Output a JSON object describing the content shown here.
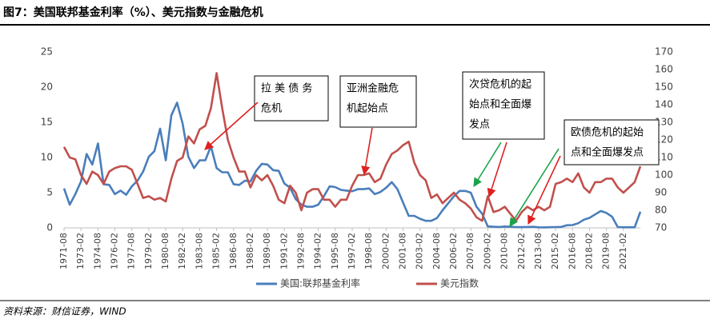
{
  "chart_data": {
    "type": "line",
    "title": "图7：美国联邦基金利率（%）、美元指数与金融危机",
    "source": "资料来源：财信证券，WIND",
    "categories": [
      "1971-08",
      null,
      null,
      "1973-02",
      null,
      null,
      "1974-08",
      null,
      null,
      "1976-02",
      null,
      null,
      "1977-08",
      null,
      null,
      "1979-02",
      null,
      null,
      "1980-08",
      null,
      null,
      "1982-02",
      null,
      null,
      "1983-08",
      null,
      null,
      "1985-02",
      null,
      null,
      "1986-08",
      null,
      null,
      "1988-02",
      null,
      null,
      "1989-08",
      null,
      null,
      "1991-02",
      null,
      null,
      "1992-08",
      null,
      null,
      "1994-02",
      null,
      null,
      "1995-08",
      null,
      null,
      "1997-02",
      null,
      null,
      "1998-08",
      null,
      null,
      "2000-02",
      null,
      null,
      "2001-08",
      null,
      null,
      "2003-02",
      null,
      null,
      "2004-08",
      null,
      null,
      "2006-02",
      null,
      null,
      "2007-08",
      null,
      null,
      "2009-02",
      null,
      null,
      "2010-08",
      null,
      null,
      "2012-02",
      null,
      null,
      "2013-08",
      null,
      null,
      "2015-02",
      null,
      null,
      "2016-08",
      null,
      null,
      "2018-02",
      null,
      null,
      "2019-08",
      null,
      null,
      "2021-02",
      null,
      null,
      null
    ],
    "series": [
      {
        "name": "美国:联邦基金利率",
        "color": "#4a7ebb",
        "values": [
          5.6,
          3.3,
          4.8,
          6.6,
          10.5,
          9.0,
          12.0,
          6.2,
          6.1,
          4.8,
          5.3,
          4.7,
          5.9,
          6.7,
          8.0,
          10.1,
          10.9,
          14.1,
          9.6,
          16.0,
          17.8,
          14.8,
          10.1,
          8.5,
          9.6,
          9.6,
          11.6,
          8.5,
          7.9,
          7.9,
          6.2,
          6.1,
          6.7,
          6.6,
          8.1,
          9.1,
          9.0,
          8.2,
          8.1,
          6.3,
          5.7,
          4.1,
          3.3,
          3.0,
          3.0,
          3.3,
          4.5,
          5.9,
          5.8,
          5.4,
          5.3,
          5.2,
          5.5,
          5.5,
          5.6,
          4.8,
          5.1,
          5.7,
          6.5,
          5.5,
          3.6,
          1.7,
          1.7,
          1.3,
          1.0,
          1.0,
          1.4,
          2.5,
          3.5,
          4.5,
          5.25,
          5.25,
          5.0,
          3.0,
          2.0,
          0.2,
          0.16,
          0.13,
          0.19,
          0.16,
          0.1,
          0.1,
          0.13,
          0.15,
          0.08,
          0.07,
          0.09,
          0.11,
          0.14,
          0.38,
          0.4,
          0.66,
          1.16,
          1.42,
          1.91,
          2.4,
          2.13,
          1.58,
          0.1,
          0.08,
          0.09,
          0.08,
          2.3
        ]
      },
      {
        "name": "美元指数",
        "color": "#c0504d",
        "axis": "y2",
        "values": [
          116,
          110,
          109,
          100,
          95,
          102,
          100,
          95,
          102,
          104,
          105,
          105,
          103,
          95,
          87,
          88,
          86,
          87,
          85,
          98,
          108,
          110,
          122,
          118,
          126,
          128,
          138,
          158,
          138,
          120,
          110,
          102,
          102,
          93,
          100,
          97,
          100,
          94,
          86,
          84,
          94,
          90,
          80,
          90,
          92,
          92,
          86,
          86,
          82,
          86,
          86,
          94,
          100,
          100,
          101,
          96,
          98,
          106,
          112,
          114,
          117,
          119,
          107,
          100,
          97,
          87,
          89,
          84,
          87,
          90,
          86,
          84,
          81,
          76,
          74,
          88,
          79,
          80,
          82,
          78,
          74,
          79,
          82,
          80,
          82,
          80,
          82,
          95,
          96,
          98,
          96,
          101,
          93,
          90,
          96,
          96,
          98,
          98,
          93,
          90,
          93,
          96,
          105
        ]
      }
    ],
    "ylim": [
      0,
      25
    ],
    "yticks": [
      0,
      5,
      10,
      15,
      20,
      25
    ],
    "y2lim": [
      70,
      170
    ],
    "y2ticks": [
      70,
      80,
      90,
      100,
      110,
      120,
      130,
      140,
      150,
      160,
      170
    ],
    "legend": "bottom",
    "annotations": [
      {
        "lines": [
          "拉 美 债 务",
          "危机"
        ]
      },
      {
        "lines": [
          "亚洲金融危",
          "机起始点"
        ]
      },
      {
        "lines": [
          "次贷危机的起",
          "始点和全面爆",
          "发点"
        ]
      },
      {
        "lines": [
          "欧债危机的起始",
          "点和全面爆发点"
        ]
      }
    ]
  }
}
